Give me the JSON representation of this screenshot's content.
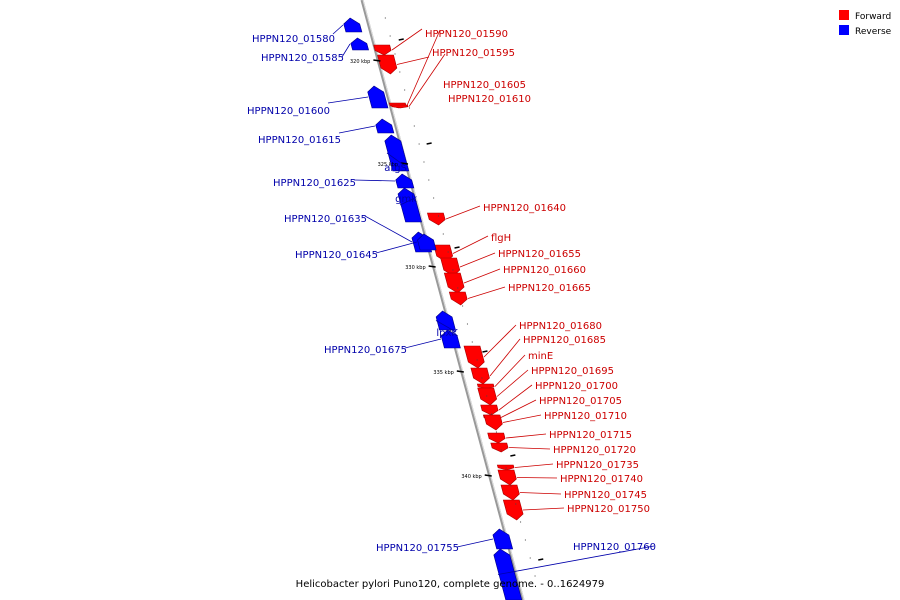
{
  "legend": {
    "items": [
      {
        "label": "Forward",
        "color": "#ff0000"
      },
      {
        "label": "Reverse",
        "color": "#0000ff"
      }
    ]
  },
  "caption": "Helicobacter pylori Puno120, complete genome. - 0..1624979",
  "colors": {
    "forward": "#ff0000",
    "reverse": "#0000ff",
    "forward_text": "#cc0000",
    "reverse_text": "#0000aa",
    "axis": "#888888"
  },
  "scale_ticks": [
    {
      "label": "320 kbp"
    },
    {
      "label": "325 kbp"
    },
    {
      "label": "330 kbp"
    },
    {
      "label": "335 kbp"
    },
    {
      "label": "340 kbp"
    }
  ],
  "genes": [
    {
      "name": "HPPN120_01580",
      "strand": "reverse"
    },
    {
      "name": "HPPN120_01585",
      "strand": "reverse"
    },
    {
      "name": "HPPN120_01590",
      "strand": "forward"
    },
    {
      "name": "HPPN120_01595",
      "strand": "forward"
    },
    {
      "name": "HPPN120_01600",
      "strand": "reverse"
    },
    {
      "name": "HPPN120_01605",
      "strand": "forward"
    },
    {
      "name": "HPPN120_01610",
      "strand": "forward"
    },
    {
      "name": "HPPN120_01615",
      "strand": "reverse"
    },
    {
      "name": "argS",
      "strand": "reverse"
    },
    {
      "name": "HPPN120_01625",
      "strand": "reverse"
    },
    {
      "name": "gmk",
      "strand": "reverse"
    },
    {
      "name": "HPPN120_01635",
      "strand": "reverse"
    },
    {
      "name": "HPPN120_01640",
      "strand": "forward"
    },
    {
      "name": "flgH",
      "strand": "forward"
    },
    {
      "name": "HPPN120_01645",
      "strand": "reverse"
    },
    {
      "name": "HPPN120_01655",
      "strand": "forward"
    },
    {
      "name": "HPPN120_01660",
      "strand": "forward"
    },
    {
      "name": "HPPN120_01665",
      "strand": "forward"
    },
    {
      "name": "lpxK",
      "strand": "reverse"
    },
    {
      "name": "HPPN120_01675",
      "strand": "reverse"
    },
    {
      "name": "HPPN120_01680",
      "strand": "forward"
    },
    {
      "name": "HPPN120_01685",
      "strand": "forward"
    },
    {
      "name": "minE",
      "strand": "forward"
    },
    {
      "name": "HPPN120_01695",
      "strand": "forward"
    },
    {
      "name": "HPPN120_01700",
      "strand": "forward"
    },
    {
      "name": "HPPN120_01705",
      "strand": "forward"
    },
    {
      "name": "HPPN120_01710",
      "strand": "forward"
    },
    {
      "name": "HPPN120_01715",
      "strand": "forward"
    },
    {
      "name": "HPPN120_01720",
      "strand": "forward"
    },
    {
      "name": "HPPN120_01735",
      "strand": "forward"
    },
    {
      "name": "HPPN120_01740",
      "strand": "forward"
    },
    {
      "name": "HPPN120_01745",
      "strand": "forward"
    },
    {
      "name": "HPPN120_01750",
      "strand": "forward"
    },
    {
      "name": "HPPN120_01755",
      "strand": "reverse"
    },
    {
      "name": "HPPN120_01760",
      "strand": "reverse"
    }
  ]
}
